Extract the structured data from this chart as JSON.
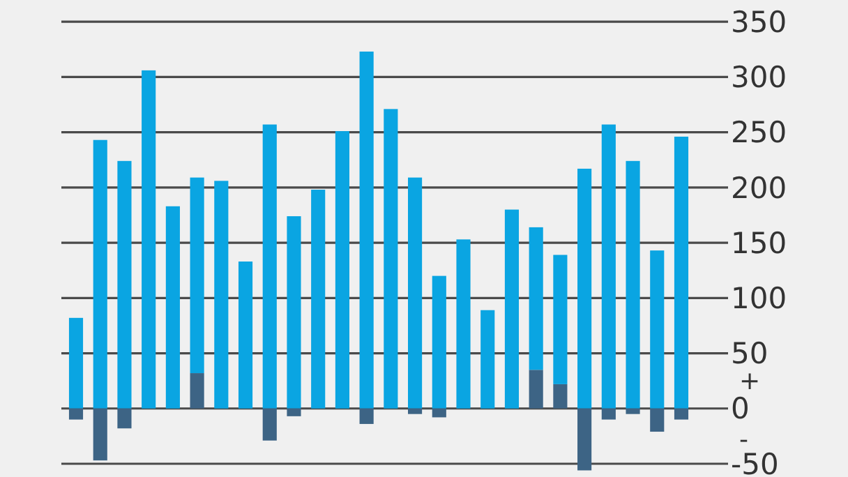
{
  "chart_data": {
    "type": "bar",
    "stacked": true,
    "categories": [
      null,
      null,
      null,
      null,
      null,
      null,
      null,
      null,
      null,
      null,
      null,
      null,
      null,
      null,
      null,
      null,
      null,
      null,
      null,
      null,
      null,
      null,
      null,
      null,
      null,
      null
    ],
    "series": [
      {
        "color": "#3d6485",
        "values": [
          0,
          0,
          0,
          0,
          0,
          32,
          0,
          0,
          0,
          0,
          0,
          0,
          0,
          0,
          0,
          0,
          0,
          0,
          0,
          35,
          22,
          0,
          0,
          0,
          0,
          0
        ]
      },
      {
        "color": "#0aa5e2",
        "values": [
          82,
          243,
          224,
          306,
          183,
          177,
          206,
          133,
          257,
          174,
          198,
          251,
          323,
          271,
          209,
          120,
          153,
          89,
          180,
          129,
          117,
          217,
          257,
          224,
          143,
          246
        ]
      },
      {
        "color": "#3d6485",
        "values": [
          -10,
          -47,
          -18,
          0,
          null,
          0,
          null,
          0,
          -29,
          -7,
          0,
          0,
          -14,
          0,
          -5,
          -8,
          0,
          0,
          0,
          0,
          0,
          -56,
          -10,
          -5,
          -21,
          -10
        ]
      }
    ],
    "ylim": [
      -62,
      352
    ],
    "yticks": [
      -50,
      0,
      50,
      100,
      150,
      200,
      250,
      300,
      350
    ],
    "grid": "y",
    "annotations": [
      "+",
      "-"
    ]
  }
}
